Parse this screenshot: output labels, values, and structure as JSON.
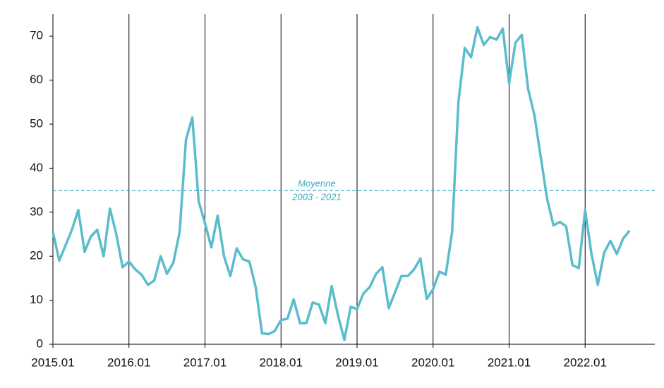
{
  "chart_data": {
    "type": "line",
    "categories": [
      "2015.01",
      null,
      null,
      null,
      null,
      null,
      null,
      null,
      null,
      null,
      null,
      null,
      "2016.01",
      null,
      null,
      null,
      null,
      null,
      null,
      null,
      null,
      null,
      null,
      null,
      "2017.01",
      null,
      null,
      null,
      null,
      null,
      null,
      null,
      null,
      null,
      null,
      null,
      "2018.01",
      null,
      null,
      null,
      null,
      null,
      null,
      null,
      null,
      null,
      null,
      null,
      "2019.01",
      null,
      null,
      null,
      null,
      null,
      null,
      null,
      null,
      null,
      null,
      null,
      "2020.01",
      null,
      null,
      null,
      null,
      null,
      null,
      null,
      null,
      null,
      null,
      null,
      "2021.01",
      null,
      null,
      null,
      null,
      null,
      null,
      null,
      null,
      null,
      null,
      null,
      "2022.01",
      null,
      null,
      null,
      null,
      null,
      null,
      null,
      null,
      null,
      null,
      null
    ],
    "values": [
      25.5,
      19,
      22.5,
      26,
      30.5,
      21,
      24.5,
      26,
      20,
      30.8,
      25,
      17.5,
      18.8,
      17,
      15.8,
      13.5,
      14.5,
      20,
      16,
      18.5,
      25.5,
      46.5,
      51.5,
      32.5,
      27.5,
      22,
      29.2,
      20,
      15.5,
      21.8,
      19.3,
      18.8,
      13,
      2.5,
      2.3,
      3,
      5.5,
      5.8,
      10.2,
      4.8,
      4.8,
      9.5,
      9,
      4.8,
      13.2,
      6.5,
      1,
      8.5,
      8,
      11.5,
      13,
      16,
      17.5,
      8.2,
      11.8,
      15.5,
      15.5,
      17,
      19.5,
      10.3,
      12.5,
      16.5,
      15.8,
      25.5,
      55,
      67.3,
      65.2,
      72,
      68,
      69.8,
      69.2,
      71.7,
      59.3,
      68.5,
      70.3,
      58,
      52,
      42.5,
      33,
      27,
      27.8,
      26.8,
      18,
      17.3,
      30.5,
      20.5,
      13.5,
      20.8,
      23.5,
      20.5,
      24,
      25.8,
      null,
      null,
      null,
      null
    ],
    "color": "#5bbccc",
    "ylim": [
      0,
      75
    ],
    "yticks": [
      0,
      10,
      20,
      30,
      40,
      50,
      60,
      70
    ],
    "mean": {
      "value": 34.9,
      "label": [
        "Moyenne",
        "2003 - 2021"
      ],
      "color": "#3aa8c0"
    }
  }
}
